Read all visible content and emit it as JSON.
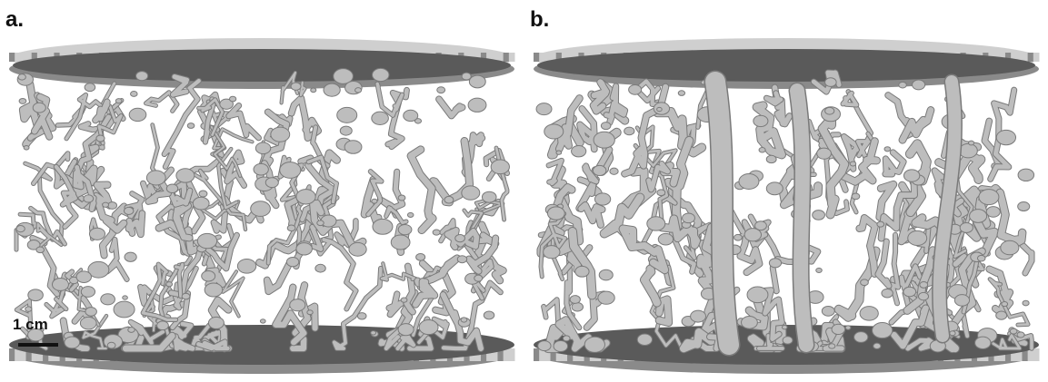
{
  "figure": {
    "panels": [
      {
        "label": "a."
      },
      {
        "label": "b."
      }
    ],
    "scalebar": {
      "text": "1 cm"
    }
  },
  "colors": {
    "disk": "#5a5a5a",
    "rim_light": "#cfcfcf",
    "rim_dark": "#8a8a8a",
    "network": "#bdbdbd",
    "network_shadow": "#7a7a7a"
  }
}
